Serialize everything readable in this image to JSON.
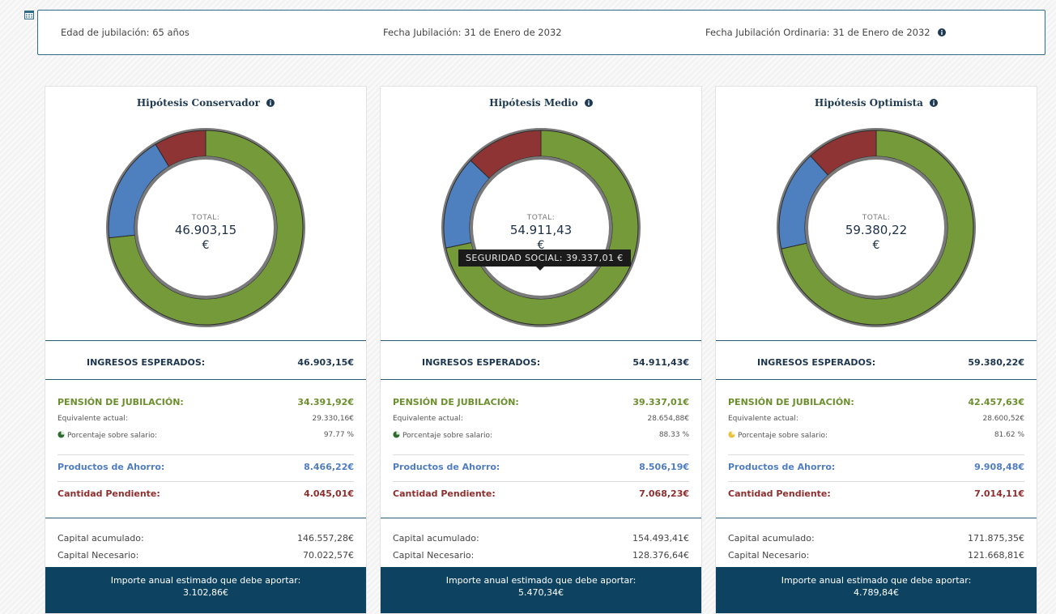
{
  "header": {
    "edad": "Edad de jubilación: 65 años",
    "fecha": "Fecha Jubilación: 31 de Enero de 2032",
    "fecha_ordinaria": "Fecha Jubilación Ordinaria: 31 de Enero de 2032"
  },
  "colors": {
    "pension": "#759a3a",
    "productos": "#4e7fbf",
    "pendiente": "#8e3434",
    "ring": "#7a7a7a",
    "footer": "#0d4360"
  },
  "tooltip": "SEGURIDAD SOCIAL: 39.337,01 €",
  "cards": [
    {
      "title": "Hipótesis Conservador",
      "total_label": "TOTAL:",
      "total_value": "46.903,15",
      "currency": "€",
      "segments": {
        "pension": 34391.92,
        "productos": 8466.22,
        "pendiente": 4045.01
      },
      "ingresos_label": "INGRESOS ESPERADOS:",
      "ingresos_value": "46.903,15€",
      "pension_label": "PENSIÓN DE JUBILACIÓN:",
      "pension_value": "34.391,92€",
      "equivalente_label": "Equivalente actual:",
      "equivalente_value": "29.330,16€",
      "porcentaje_label": "Porcentaje sobre salario:",
      "porcentaje_value": "97.77 %",
      "porcentaje_icon_color": "#2e6b2e",
      "productos_label": "Productos de Ahorro:",
      "productos_value": "8.466,22€",
      "pendiente_label": "Cantidad Pendiente:",
      "pendiente_value": "4.045,01€",
      "capital_acumulado_label": "Capital acumulado:",
      "capital_acumulado_value": "146.557,28€",
      "capital_necesario_label": "Capital Necesario:",
      "capital_necesario_value": "70.022,57€",
      "importe_label": "Importe anual estimado que debe aportar:",
      "importe_value": "3.102,86€"
    },
    {
      "title": "Hipótesis Medio",
      "total_label": "TOTAL:",
      "total_value": "54.911,43",
      "currency": "€",
      "segments": {
        "pension": 39337.01,
        "productos": 8506.19,
        "pendiente": 7068.23
      },
      "ingresos_label": "INGRESOS ESPERADOS:",
      "ingresos_value": "54.911,43€",
      "pension_label": "PENSIÓN DE JUBILACIÓN:",
      "pension_value": "39.337,01€",
      "equivalente_label": "Equivalente actual:",
      "equivalente_value": "28.654,88€",
      "porcentaje_label": "Porcentaje sobre salario:",
      "porcentaje_value": "88.33 %",
      "porcentaje_icon_color": "#2e6b2e",
      "productos_label": "Productos de Ahorro:",
      "productos_value": "8.506,19€",
      "pendiente_label": "Cantidad Pendiente:",
      "pendiente_value": "7.068,23€",
      "capital_acumulado_label": "Capital acumulado:",
      "capital_acumulado_value": "154.493,41€",
      "capital_necesario_label": "Capital Necesario:",
      "capital_necesario_value": "128.376,64€",
      "importe_label": "Importe anual estimado que debe aportar:",
      "importe_value": "5.470,34€"
    },
    {
      "title": "Hipótesis Optimista",
      "total_label": "TOTAL:",
      "total_value": "59.380,22",
      "currency": "€",
      "segments": {
        "pension": 42457.63,
        "productos": 9908.48,
        "pendiente": 7014.11
      },
      "ingresos_label": "INGRESOS ESPERADOS:",
      "ingresos_value": "59.380,22€",
      "pension_label": "PENSIÓN DE JUBILACIÓN:",
      "pension_value": "42.457,63€",
      "equivalente_label": "Equivalente actual:",
      "equivalente_value": "28.600,52€",
      "porcentaje_label": "Porcentaje sobre salario:",
      "porcentaje_value": "81.62 %",
      "porcentaje_icon_color": "#e8c23a",
      "productos_label": "Productos de Ahorro:",
      "productos_value": "9.908,48€",
      "pendiente_label": "Cantidad Pendiente:",
      "pendiente_value": "7.014,11€",
      "capital_acumulado_label": "Capital acumulado:",
      "capital_acumulado_value": "171.875,35€",
      "capital_necesario_label": "Capital Necesario:",
      "capital_necesario_value": "121.668,81€",
      "importe_label": "Importe anual estimado que debe aportar:",
      "importe_value": "4.789,84€"
    }
  ]
}
